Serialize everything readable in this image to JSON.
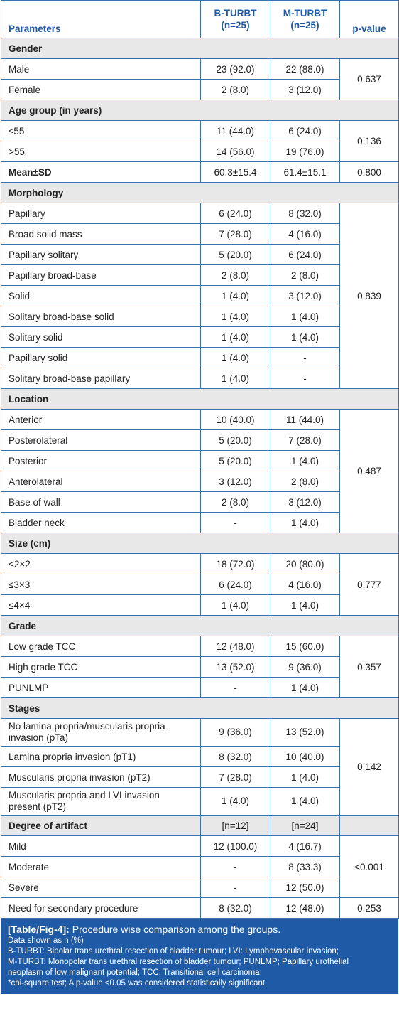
{
  "header": {
    "parameters": "Parameters",
    "b_turbt": "B-TURBT",
    "b_n": "(n=25)",
    "m_turbt": "M-TURBT",
    "m_n": "(n=25)",
    "pvalue": "p-value"
  },
  "rows": {
    "gender": "Gender",
    "male": {
      "label": "Male",
      "b": "23 (92.0)",
      "m": "22 (88.0)"
    },
    "female": {
      "label": "Female",
      "b": "2 (8.0)",
      "m": "3 (12.0)"
    },
    "gender_p": "0.637",
    "age": "Age group (in years)",
    "le55": {
      "label": "≤55",
      "b": "11 (44.0)",
      "m": "6 (24.0)"
    },
    "gt55": {
      "label": ">55",
      "b": "14 (56.0)",
      "m": "19 (76.0)"
    },
    "age_p": "0.136",
    "mean": {
      "label": "Mean±SD",
      "b": "60.3±15.4",
      "m": "61.4±15.1",
      "p": "0.800"
    },
    "morph": "Morphology",
    "m1": {
      "label": "Papillary",
      "b": "6 (24.0)",
      "m": "8 (32.0)"
    },
    "m2": {
      "label": "Broad solid mass",
      "b": "7 (28.0)",
      "m": "4 (16.0)"
    },
    "m3": {
      "label": "Papillary solitary",
      "b": "5 (20.0)",
      "m": "6 (24.0)"
    },
    "m4": {
      "label": "Papillary broad-base",
      "b": "2 (8.0)",
      "m": "2 (8.0)"
    },
    "m5": {
      "label": "Solid",
      "b": "1 (4.0)",
      "m": "3 (12.0)"
    },
    "m6": {
      "label": "Solitary broad-base solid",
      "b": "1 (4.0)",
      "m": "1 (4.0)"
    },
    "m7": {
      "label": "Solitary solid",
      "b": "1 (4.0)",
      "m": "1 (4.0)"
    },
    "m8": {
      "label": "Papillary solid",
      "b": "1 (4.0)",
      "m": "-"
    },
    "m9": {
      "label": "Solitary broad-base papillary",
      "b": "1 (4.0)",
      "m": "-"
    },
    "morph_p": "0.839",
    "loc": "Location",
    "l1": {
      "label": "Anterior",
      "b": "10 (40.0)",
      "m": "11 (44.0)"
    },
    "l2": {
      "label": "Posterolateral",
      "b": "5 (20.0)",
      "m": "7 (28.0)"
    },
    "l3": {
      "label": "Posterior",
      "b": "5 (20.0)",
      "m": "1 (4.0)"
    },
    "l4": {
      "label": "Anterolateral",
      "b": "3 (12.0)",
      "m": "2 (8.0)"
    },
    "l5": {
      "label": "Base of wall",
      "b": "2 (8.0)",
      "m": "3 (12.0)"
    },
    "l6": {
      "label": "Bladder neck",
      "b": "-",
      "m": "1 (4.0)"
    },
    "loc_p": "0.487",
    "size": "Size (cm)",
    "s1": {
      "label": "<2×2",
      "b": "18 (72.0)",
      "m": "20 (80.0)"
    },
    "s2": {
      "label": "≤3×3",
      "b": "6 (24.0)",
      "m": "4 (16.0)"
    },
    "s3": {
      "label": "≤4×4",
      "b": "1 (4.0)",
      "m": "1 (4.0)"
    },
    "size_p": "0.777",
    "grade": "Grade",
    "g1": {
      "label": "Low grade TCC",
      "b": "12 (48.0)",
      "m": "15 (60.0)"
    },
    "g2": {
      "label": "High grade TCC",
      "b": "13 (52.0)",
      "m": "9 (36.0)"
    },
    "g3": {
      "label": "PUNLMP",
      "b": "-",
      "m": "1 (4.0)"
    },
    "grade_p": "0.357",
    "stages": "Stages",
    "st1": {
      "label": "No lamina propria/muscularis propria invasion (pTa)",
      "b": "9 (36.0)",
      "m": "13 (52.0)"
    },
    "st2": {
      "label": "Lamina propria invasion (pT1)",
      "b": "8 (32.0)",
      "m": "10 (40.0)"
    },
    "st3": {
      "label": "Muscularis propria invasion (pT2)",
      "b": "7 (28.0)",
      "m": "1 (4.0)"
    },
    "st4": {
      "label": "Muscularis propria and LVI invasion present (pT2)",
      "b": "1 (4.0)",
      "m": "1 (4.0)"
    },
    "stages_p": "0.142",
    "artifact": {
      "label": "Degree of artifact",
      "b": "[n=12]",
      "m": "[n=24]"
    },
    "a1": {
      "label": "Mild",
      "b": "12 (100.0)",
      "m": "4 (16.7)"
    },
    "a2": {
      "label": "Moderate",
      "b": "-",
      "m": "8 (33.3)"
    },
    "a3": {
      "label": "Severe",
      "b": "-",
      "m": "12 (50.0)"
    },
    "artifact_p": "<0.001",
    "secondary": {
      "label": "Need for secondary procedure",
      "b": "8 (32.0)",
      "m": "12 (48.0)",
      "p": "0.253"
    }
  },
  "caption": {
    "tag": "[Table/Fig-4]:",
    "title": " Procedure wise comparison among the groups.",
    "line1": "Data shown as n (%)",
    "line2": "B-TURBT: Bipolar trans urethral resection of bladder tumour; LVI: Lymphovascular invasion;",
    "line3": "M-TURBT: Monopolar trans urethral resection of bladder tumour; PUNLMP; Papillary urothelial",
    "line4": "neoplasm of low malignant potential; TCC; Transitional cell carcinoma",
    "line5": "*chi-square test; A p-value <0.05 was considered statistically significant"
  },
  "colors": {
    "accent": "#1f5aa6",
    "border": "#3a6fb0",
    "section_bg": "#e8e8e8"
  }
}
